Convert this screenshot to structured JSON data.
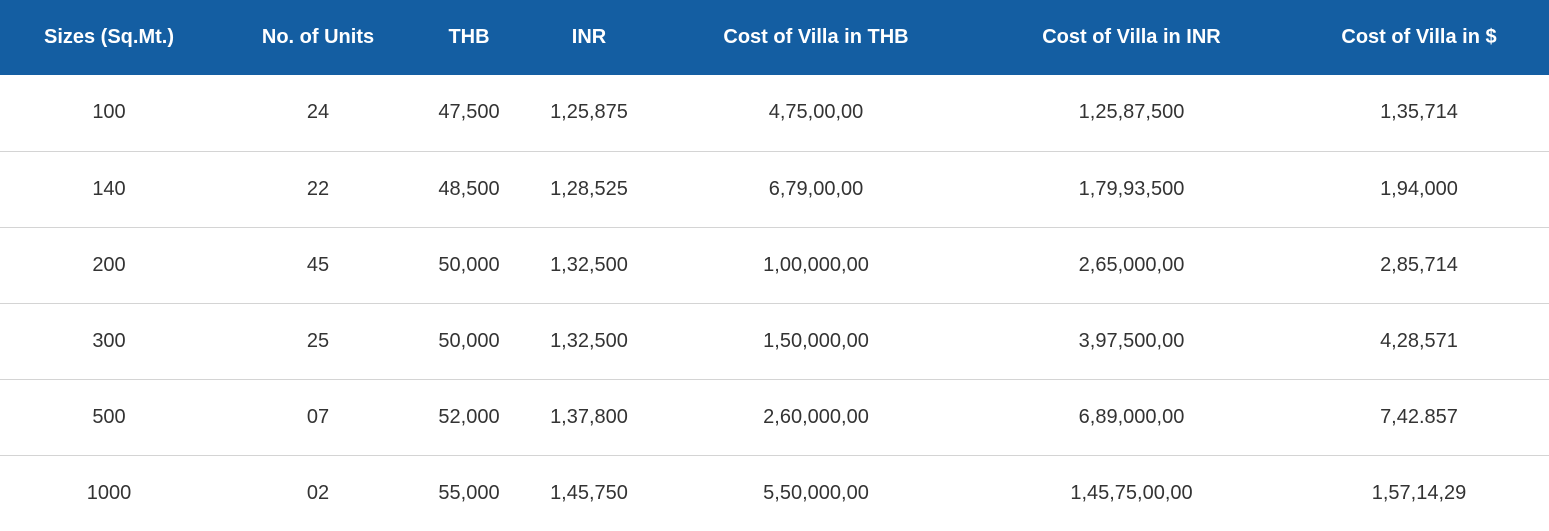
{
  "table": {
    "header_bg": "#145ea2",
    "headers": [
      "Sizes (Sq.Mt.)",
      "No. of Units",
      "THB",
      "INR",
      "Cost of Villa in THB",
      "Cost of Villa in INR",
      "Cost of Villa in $"
    ],
    "rows": [
      [
        "100",
        "24",
        "47,500",
        "1,25,875",
        "4,75,00,00",
        "1,25,87,500",
        "1,35,714"
      ],
      [
        "140",
        "22",
        "48,500",
        "1,28,525",
        "6,79,00,00",
        "1,79,93,500",
        "1,94,000"
      ],
      [
        "200",
        "45",
        "50,000",
        "1,32,500",
        "1,00,000,00",
        "2,65,000,00",
        "2,85,714"
      ],
      [
        "300",
        "25",
        "50,000",
        "1,32,500",
        "1,50,000,00",
        "3,97,500,00",
        "4,28,571"
      ],
      [
        "500",
        "07",
        "52,000",
        "1,37,800",
        "2,60,000,00",
        "6,89,000,00",
        "7,42.857"
      ],
      [
        "1000",
        "02",
        "55,000",
        "1,45,750",
        "5,50,000,00",
        "1,45,75,00,00",
        "1,57,14,29"
      ]
    ]
  }
}
